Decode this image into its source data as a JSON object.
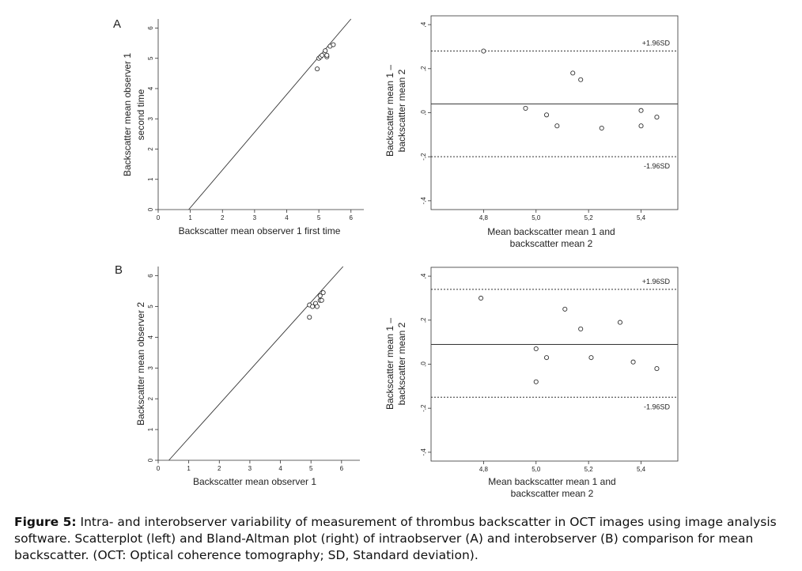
{
  "panels": [
    {
      "label": "A"
    },
    {
      "label": "B"
    }
  ],
  "chart_data": [
    {
      "panel": "A",
      "type": "scatter",
      "xlabel": "Backscatter mean observer 1 first time",
      "ylabel": [
        "Backscatter mean observer 1",
        "second time"
      ],
      "xlim": [
        0,
        6.4
      ],
      "ylim": [
        0,
        6.3
      ],
      "xticks": [
        0,
        1,
        2,
        3,
        4,
        5,
        6
      ],
      "yticks": [
        0,
        1,
        2,
        3,
        4,
        5,
        6
      ],
      "points": [
        [
          4.95,
          4.65
        ],
        [
          5.0,
          5.0
        ],
        [
          5.05,
          5.05
        ],
        [
          5.1,
          5.1
        ],
        [
          5.2,
          5.25
        ],
        [
          5.25,
          5.05
        ],
        [
          5.25,
          5.1
        ],
        [
          5.35,
          5.4
        ],
        [
          5.45,
          5.45
        ]
      ],
      "line": {
        "x": [
          0.95,
          6.0
        ],
        "y": [
          0.0,
          6.3
        ]
      }
    },
    {
      "panel": "A",
      "type": "scatter",
      "xlabel": [
        "Mean backscatter mean 1 and",
        "backscatter mean 2"
      ],
      "ylabel": [
        "Backscatter mean 1 –",
        "backscatter mean 2"
      ],
      "xlim": [
        4.6,
        5.54
      ],
      "ylim": [
        -0.44,
        0.44
      ],
      "xticks": [
        "4,8",
        "5,0",
        "5,2",
        "5,4"
      ],
      "xtick_values": [
        4.8,
        5.0,
        5.2,
        5.4
      ],
      "yticks": [
        ",4",
        ",2",
        ",0",
        "-,2",
        "-,4"
      ],
      "ytick_values": [
        0.4,
        0.2,
        0.0,
        -0.2,
        -0.4
      ],
      "points": [
        [
          4.8,
          0.28
        ],
        [
          4.96,
          0.02
        ],
        [
          5.04,
          -0.01
        ],
        [
          5.08,
          -0.06
        ],
        [
          5.14,
          0.18
        ],
        [
          5.17,
          0.15
        ],
        [
          5.25,
          -0.07
        ],
        [
          5.4,
          0.01
        ],
        [
          5.4,
          -0.06
        ],
        [
          5.46,
          -0.02
        ]
      ],
      "mean_line": 0.04,
      "upper_limit": {
        "value": 0.28,
        "label": "+1.96SD"
      },
      "lower_limit": {
        "value": -0.2,
        "label": "-1.96SD"
      }
    },
    {
      "panel": "B",
      "type": "scatter",
      "xlabel": "Backscatter mean observer 1",
      "ylabel": "Backscatter mean observer 2",
      "xlim": [
        0,
        6.6
      ],
      "ylim": [
        0,
        6.3
      ],
      "xticks": [
        0,
        1,
        2,
        3,
        4,
        5,
        6
      ],
      "yticks": [
        0,
        1,
        2,
        3,
        4,
        5,
        6
      ],
      "points": [
        [
          4.95,
          4.65
        ],
        [
          4.95,
          5.05
        ],
        [
          5.05,
          5.0
        ],
        [
          5.15,
          5.1
        ],
        [
          5.2,
          5.0
        ],
        [
          5.3,
          5.2
        ],
        [
          5.3,
          5.35
        ],
        [
          5.35,
          5.2
        ],
        [
          5.4,
          5.45
        ]
      ],
      "line": {
        "x": [
          0.35,
          6.05
        ],
        "y": [
          0.0,
          6.3
        ]
      }
    },
    {
      "panel": "B",
      "type": "scatter",
      "xlabel": [
        "Mean backscatter mean 1 and",
        "backscatter mean 2"
      ],
      "ylabel": [
        "Backscatter mean 1 –",
        "backscatter mean 2"
      ],
      "xlim": [
        4.6,
        5.54
      ],
      "ylim": [
        -0.44,
        0.44
      ],
      "xticks": [
        "4,8",
        "5,0",
        "5,2",
        "5,4"
      ],
      "xtick_values": [
        4.8,
        5.0,
        5.2,
        5.4
      ],
      "yticks": [
        ",4",
        ",2",
        ",0",
        "-,2",
        "-,4"
      ],
      "ytick_values": [
        0.4,
        0.2,
        0.0,
        -0.2,
        -0.4
      ],
      "points": [
        [
          4.79,
          0.3
        ],
        [
          5.0,
          0.07
        ],
        [
          5.0,
          -0.08
        ],
        [
          5.04,
          0.03
        ],
        [
          5.11,
          0.25
        ],
        [
          5.17,
          0.16
        ],
        [
          5.21,
          0.03
        ],
        [
          5.32,
          0.19
        ],
        [
          5.37,
          0.01
        ],
        [
          5.46,
          -0.02
        ]
      ],
      "mean_line": 0.09,
      "upper_limit": {
        "value": 0.34,
        "label": "+1.96SD"
      },
      "lower_limit": {
        "value": -0.15,
        "label": "-1.96SD"
      }
    }
  ],
  "caption": {
    "bold": "Figure 5:",
    "text": " Intra- and interobserver variability of measurement of thrombus backscatter in OCT images using image analysis software. Scatterplot (left) and Bland-Altman plot (right) of intraobserver (A) and interobserver (B) comparison for mean backscatter. (OCT: Optical coherence tomography; SD, Standard deviation)."
  }
}
